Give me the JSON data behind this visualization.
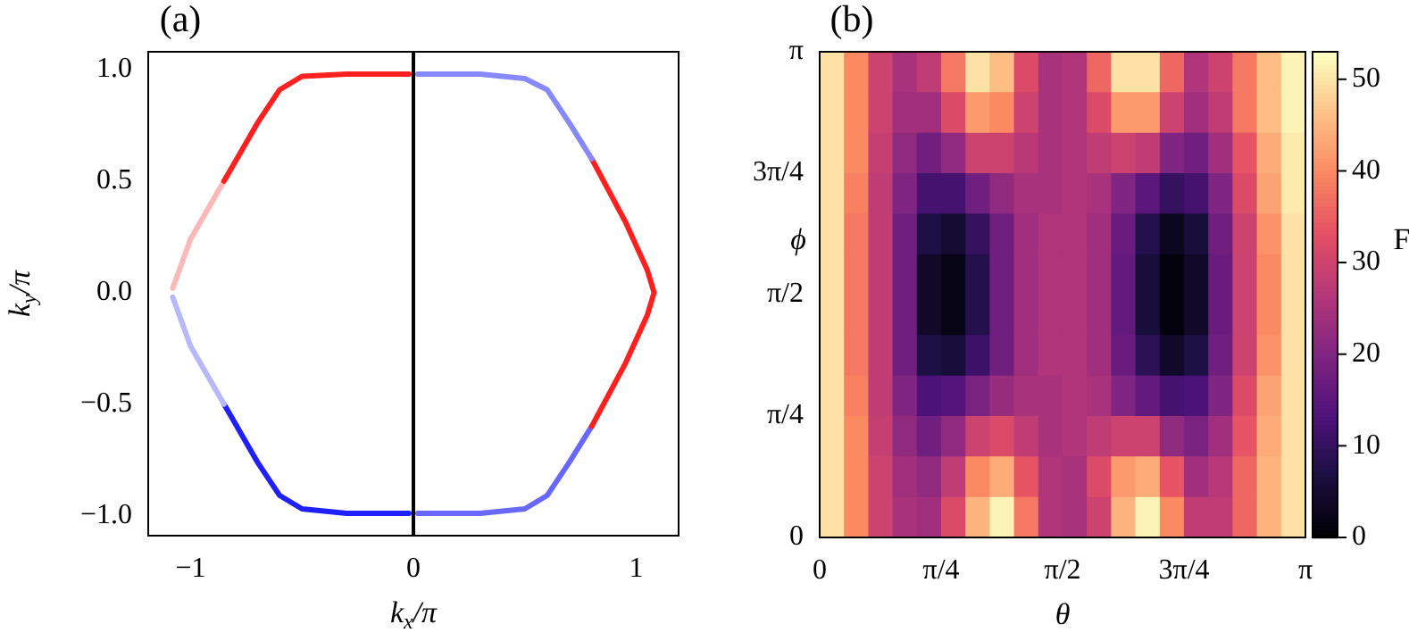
{
  "chart_data": [
    {
      "type": "line",
      "title": "(a)",
      "xlabel": "k$_{x}$/π",
      "ylabel": "k$_{y}$/π",
      "xlim": [
        -1.19,
        1.19
      ],
      "ylim": [
        -1.09,
        1.08
      ],
      "xticks": [
        {
          "value": -1,
          "label": "−1"
        },
        {
          "value": 0,
          "label": "0"
        },
        {
          "value": 1,
          "label": "1"
        }
      ],
      "yticks": [
        {
          "value": -1,
          "label": "−1.0"
        },
        {
          "value": -0.5,
          "label": "−0.5"
        },
        {
          "value": 0,
          "label": "0.0"
        },
        {
          "value": 0.5,
          "label": "0.5"
        },
        {
          "value": 1,
          "label": "1.0"
        }
      ],
      "grid": false,
      "legend": false,
      "marker": "none",
      "line_style": "solid",
      "ref_lines": [
        {
          "axis": "x",
          "value": 0,
          "color": "#000000"
        }
      ],
      "series": [
        {
          "color": "#ff2020",
          "x": [
            -0.02,
            -0.3,
            -0.5,
            -0.6,
            -0.7,
            -0.85
          ],
          "values": [
            0.98,
            0.98,
            0.97,
            0.91,
            0.76,
            0.5
          ]
        },
        {
          "color": "#ffb8b8",
          "x": [
            -0.85,
            -1.0,
            -1.08
          ],
          "values": [
            0.5,
            0.24,
            0.02
          ]
        },
        {
          "color": "#b8b8ff",
          "x": [
            -1.08,
            -1.0,
            -0.85
          ],
          "values": [
            -0.02,
            -0.24,
            -0.5
          ]
        },
        {
          "color": "#2020ff",
          "x": [
            -0.85,
            -0.7,
            -0.6,
            -0.5,
            -0.3,
            -0.02
          ],
          "values": [
            -0.5,
            -0.76,
            -0.91,
            -0.97,
            -0.99,
            -0.99
          ]
        },
        {
          "color": "#8888ff",
          "x": [
            0.02,
            0.3,
            0.5,
            0.6,
            0.7,
            0.8
          ],
          "values": [
            0.98,
            0.98,
            0.96,
            0.91,
            0.76,
            0.6
          ]
        },
        {
          "color": "#ff2020",
          "x": [
            0.8,
            0.95,
            1.05,
            1.08,
            1.05,
            0.95,
            0.8
          ],
          "values": [
            0.6,
            0.32,
            0.1,
            0,
            -0.1,
            -0.32,
            -0.6
          ]
        },
        {
          "color": "#6868ff",
          "x": [
            0.8,
            0.7,
            0.6,
            0.5,
            0.3,
            0.02
          ],
          "values": [
            -0.6,
            -0.76,
            -0.91,
            -0.97,
            -0.99,
            -0.99
          ]
        }
      ]
    },
    {
      "type": "heatmap",
      "title": "(b)",
      "xlabel": "θ",
      "ylabel": "ϕ",
      "clabel": "F",
      "xlim": [
        0,
        3.1416
      ],
      "ylim": [
        0,
        3.1416
      ],
      "xticks": [
        {
          "value": 0,
          "label": "0"
        },
        {
          "value": 0.7854,
          "label": "π/4"
        },
        {
          "value": 1.5708,
          "label": "π/2"
        },
        {
          "value": 2.3562,
          "label": "3π/4"
        },
        {
          "value": 3.1416,
          "label": "π"
        }
      ],
      "yticks": [
        {
          "value": 0,
          "label": "0"
        },
        {
          "value": 0.7854,
          "label": "π/4"
        },
        {
          "value": 1.5708,
          "label": "π/2"
        },
        {
          "value": 2.3562,
          "label": "3π/4"
        },
        {
          "value": 3.1416,
          "label": "π"
        }
      ],
      "clim": [
        0,
        53
      ],
      "cticks": [
        0,
        10,
        20,
        30,
        40,
        50
      ],
      "x": [
        0.0785,
        0.2356,
        0.3927,
        0.5498,
        0.7069,
        0.864,
        1.021,
        1.1781,
        1.3352,
        1.4923,
        1.6493,
        1.8064,
        1.9635,
        2.1206,
        2.2777,
        2.4347,
        2.5918,
        2.7489,
        2.906,
        3.0631
      ],
      "y": [
        3.0107,
        2.7489,
        2.4871,
        2.2253,
        1.9635,
        1.7017,
        1.4399,
        1.1781,
        0.9163,
        0.6545,
        0.3927,
        0.1309
      ],
      "cells": [
        [
          50,
          40,
          30,
          25,
          28,
          38,
          50,
          46,
          32,
          25,
          26,
          36,
          50,
          50,
          36,
          26,
          30,
          38,
          46,
          52
        ],
        [
          50,
          40,
          30,
          24,
          24,
          32,
          42,
          40,
          30,
          25,
          26,
          32,
          42,
          42,
          30,
          24,
          28,
          38,
          46,
          52
        ],
        [
          50,
          40,
          29,
          22,
          18,
          22,
          30,
          30,
          27,
          25,
          26,
          28,
          30,
          28,
          20,
          18,
          24,
          34,
          44,
          51
        ],
        [
          50,
          39,
          28,
          20,
          12,
          12,
          18,
          22,
          25,
          25,
          26,
          25,
          20,
          15,
          10,
          12,
          20,
          32,
          43,
          51
        ],
        [
          50,
          38,
          28,
          18,
          7,
          5,
          10,
          18,
          24,
          26,
          26,
          24,
          17,
          8,
          3,
          6,
          18,
          30,
          41,
          50
        ],
        [
          50,
          38,
          28,
          18,
          4,
          2,
          8,
          18,
          24,
          26,
          26,
          24,
          16,
          6,
          1,
          4,
          17,
          30,
          40,
          50
        ],
        [
          50,
          38,
          28,
          18,
          4,
          2,
          8,
          18,
          24,
          26,
          26,
          24,
          16,
          6,
          1,
          4,
          17,
          30,
          40,
          50
        ],
        [
          50,
          38,
          28,
          18,
          7,
          6,
          11,
          18,
          24,
          26,
          26,
          24,
          17,
          9,
          4,
          7,
          18,
          30,
          41,
          50
        ],
        [
          50,
          39,
          28,
          20,
          13,
          14,
          19,
          23,
          25,
          25,
          26,
          25,
          20,
          16,
          12,
          13,
          20,
          32,
          43,
          50
        ],
        [
          50,
          40,
          29,
          22,
          18,
          22,
          30,
          32,
          28,
          25,
          26,
          28,
          30,
          30,
          22,
          19,
          24,
          34,
          44,
          50
        ],
        [
          50,
          40,
          30,
          24,
          22,
          28,
          40,
          44,
          34,
          26,
          25,
          32,
          42,
          44,
          34,
          24,
          27,
          36,
          45,
          50
        ],
        [
          50,
          40,
          30,
          25,
          24,
          32,
          45,
          52,
          38,
          26,
          25,
          30,
          45,
          52,
          40,
          28,
          28,
          36,
          45,
          50
        ]
      ]
    }
  ]
}
